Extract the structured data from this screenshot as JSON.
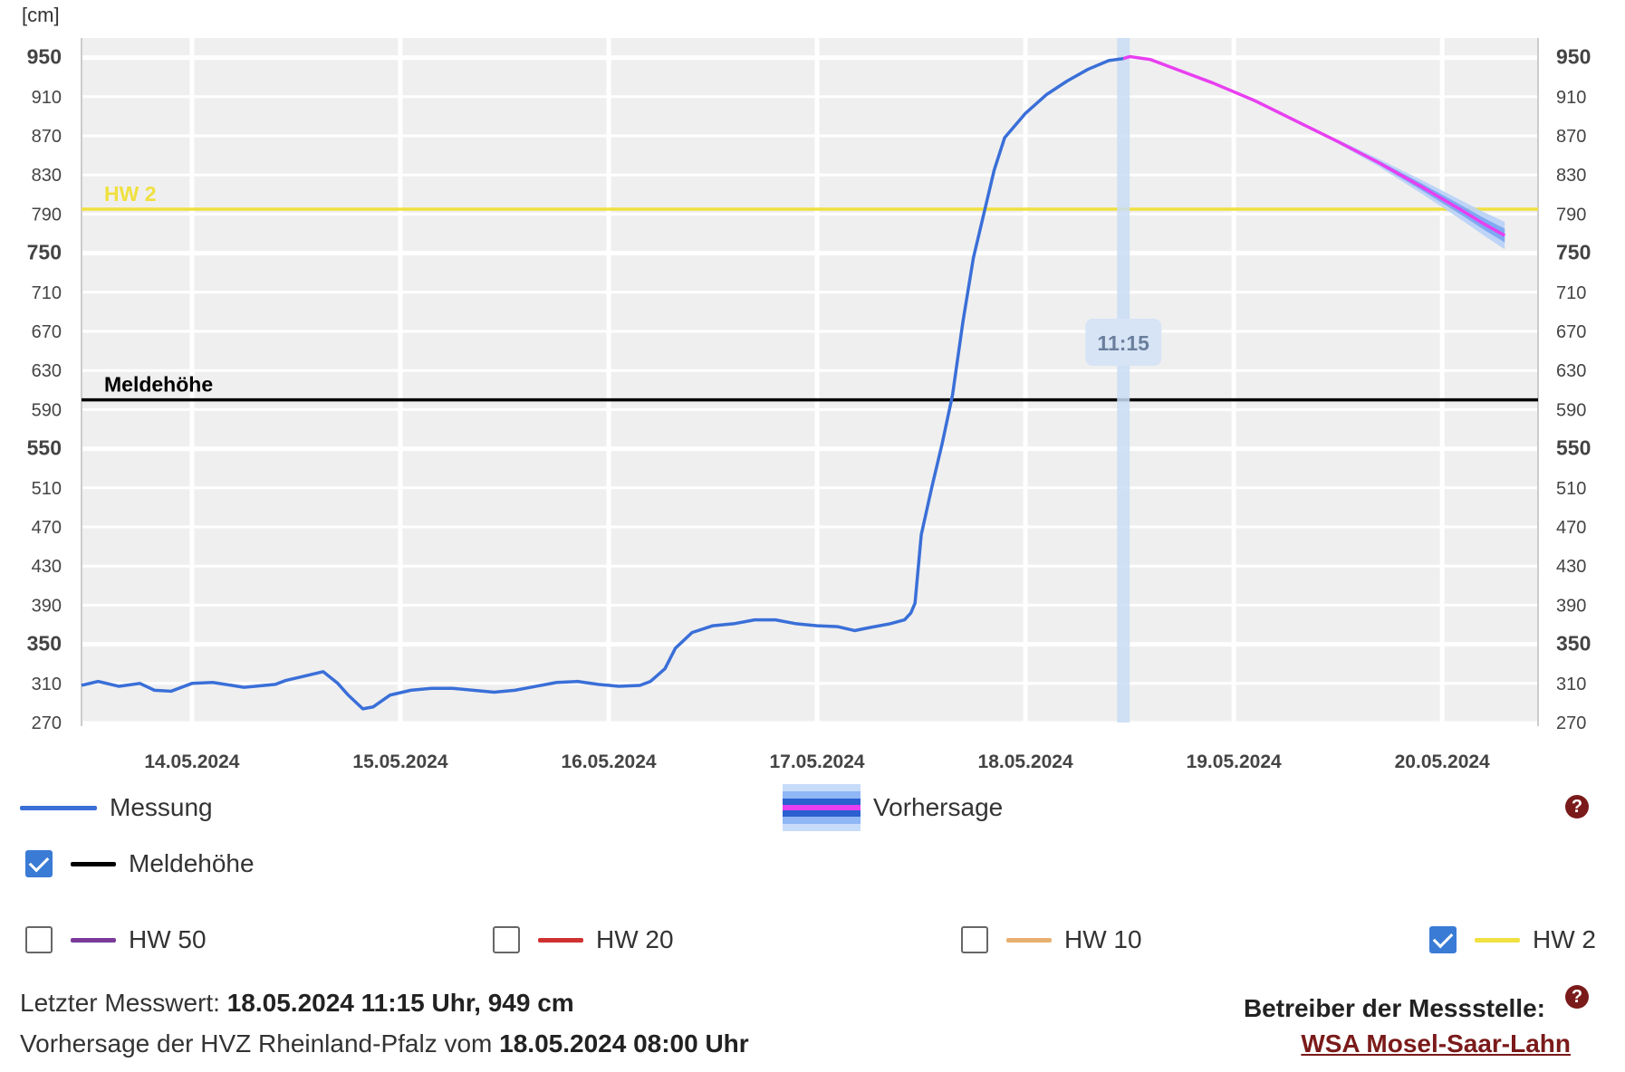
{
  "chart_data": {
    "type": "line",
    "unit_label": "[cm]",
    "ylim": [
      270,
      970
    ],
    "y_ticks": [
      {
        "value": 950,
        "bold": true
      },
      {
        "value": 910,
        "bold": false
      },
      {
        "value": 870,
        "bold": false
      },
      {
        "value": 830,
        "bold": false
      },
      {
        "value": 790,
        "bold": false
      },
      {
        "value": 750,
        "bold": true
      },
      {
        "value": 710,
        "bold": false
      },
      {
        "value": 670,
        "bold": false
      },
      {
        "value": 630,
        "bold": false
      },
      {
        "value": 590,
        "bold": false
      },
      {
        "value": 550,
        "bold": true
      },
      {
        "value": 510,
        "bold": false
      },
      {
        "value": 470,
        "bold": false
      },
      {
        "value": 430,
        "bold": false
      },
      {
        "value": 390,
        "bold": false
      },
      {
        "value": 350,
        "bold": true
      },
      {
        "value": 310,
        "bold": false
      },
      {
        "value": 270,
        "bold": false
      }
    ],
    "x_ticks": [
      "14.05.2024",
      "15.05.2024",
      "16.05.2024",
      "17.05.2024",
      "18.05.2024",
      "19.05.2024",
      "20.05.2024"
    ],
    "x_tick_dates": [
      14,
      15,
      16,
      17,
      18,
      19,
      20
    ],
    "x_range_days": [
      13.47,
      20.46
    ],
    "grid": true,
    "reference_lines": [
      {
        "name": "HW 2",
        "value": 795,
        "color": "#f0e040"
      },
      {
        "name": "Meldehöhe",
        "value": 600,
        "color": "#000000"
      }
    ],
    "current_marker": {
      "label": "11:15",
      "day": 18.47
    },
    "series": [
      {
        "name": "Messung",
        "color": "#3a6fd8",
        "points_day_value": [
          [
            13.47,
            308
          ],
          [
            13.55,
            312
          ],
          [
            13.65,
            307
          ],
          [
            13.75,
            310
          ],
          [
            13.82,
            303
          ],
          [
            13.9,
            302
          ],
          [
            14.0,
            310
          ],
          [
            14.1,
            311
          ],
          [
            14.25,
            306
          ],
          [
            14.4,
            309
          ],
          [
            14.45,
            313
          ],
          [
            14.55,
            318
          ],
          [
            14.63,
            322
          ],
          [
            14.7,
            310
          ],
          [
            14.75,
            298
          ],
          [
            14.82,
            284
          ],
          [
            14.87,
            286
          ],
          [
            14.95,
            298
          ],
          [
            15.05,
            303
          ],
          [
            15.15,
            305
          ],
          [
            15.25,
            305
          ],
          [
            15.35,
            303
          ],
          [
            15.45,
            301
          ],
          [
            15.55,
            303
          ],
          [
            15.65,
            307
          ],
          [
            15.75,
            311
          ],
          [
            15.85,
            312
          ],
          [
            15.95,
            309
          ],
          [
            16.05,
            307
          ],
          [
            16.15,
            308
          ],
          [
            16.2,
            312
          ],
          [
            16.27,
            325
          ],
          [
            16.32,
            346
          ],
          [
            16.4,
            362
          ],
          [
            16.5,
            369
          ],
          [
            16.6,
            371
          ],
          [
            16.7,
            375
          ],
          [
            16.8,
            375
          ],
          [
            16.9,
            371
          ],
          [
            17.0,
            369
          ],
          [
            17.1,
            368
          ],
          [
            17.18,
            364
          ],
          [
            17.25,
            367
          ],
          [
            17.35,
            371
          ],
          [
            17.42,
            375
          ],
          [
            17.45,
            382
          ],
          [
            17.47,
            392
          ],
          [
            17.5,
            462
          ],
          [
            17.55,
            510
          ],
          [
            17.6,
            555
          ],
          [
            17.65,
            605
          ],
          [
            17.7,
            680
          ],
          [
            17.75,
            745
          ],
          [
            17.8,
            790
          ],
          [
            17.85,
            835
          ],
          [
            17.9,
            868
          ],
          [
            18.0,
            893
          ],
          [
            18.1,
            912
          ],
          [
            18.2,
            926
          ],
          [
            18.3,
            938
          ],
          [
            18.4,
            947
          ],
          [
            18.47,
            949
          ]
        ]
      },
      {
        "name": "Vorhersage",
        "color": "#e83ff0",
        "band_color": "#6aa0f0",
        "points_day_value": [
          [
            18.47,
            949
          ],
          [
            18.5,
            951
          ],
          [
            18.6,
            948
          ],
          [
            18.75,
            936
          ],
          [
            18.9,
            924
          ],
          [
            19.1,
            906
          ],
          [
            19.3,
            885
          ],
          [
            19.5,
            864
          ],
          [
            19.7,
            842
          ],
          [
            19.9,
            818
          ],
          [
            20.1,
            793
          ],
          [
            20.2,
            780
          ],
          [
            20.3,
            768
          ]
        ],
        "band_spread": [
          0,
          0,
          0,
          0,
          0,
          0,
          0,
          2,
          4,
          7,
          10,
          12,
          14
        ]
      }
    ]
  },
  "legend": {
    "messung_label": "Messung",
    "vorhersage_label": "Vorhersage",
    "meldehoehe_label": "Meldehöhe",
    "meldehoehe_checked": true,
    "hw": [
      {
        "label": "HW 50",
        "color": "#7b3a9a",
        "checked": false
      },
      {
        "label": "HW 20",
        "color": "#d03030",
        "checked": false
      },
      {
        "label": "HW 10",
        "color": "#e8b070",
        "checked": false
      },
      {
        "label": "HW 2",
        "color": "#f0e040",
        "checked": true
      }
    ],
    "help_icon": "?"
  },
  "info": {
    "last_value_prefix": "Letzter Messwert: ",
    "last_value": "18.05.2024 11:15 Uhr, 949 cm",
    "forecast_prefix": "Vorhersage der HVZ Rheinland-Pfalz vom ",
    "forecast_date": "18.05.2024 08:00 Uhr",
    "operator_label": "Betreiber der Messstelle:",
    "operator_link": "WSA Mosel-Saar-Lahn"
  }
}
